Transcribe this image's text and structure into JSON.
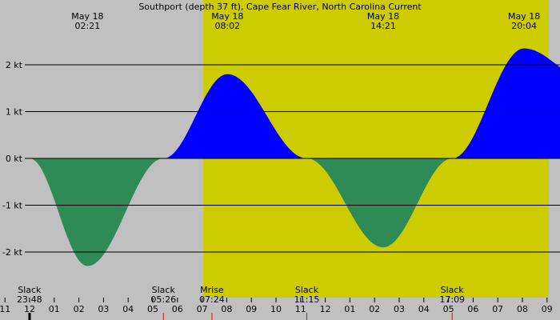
{
  "chart_data": {
    "type": "area",
    "title": "Southport (depth 37 ft), Cape Fear River, North Carolina Current",
    "xlabel": "",
    "ylabel": "",
    "unit": "kt",
    "x_range_hours": [
      -0.2,
      22.6
    ],
    "ylim": [
      -2.7,
      2.7
    ],
    "y_ticks": [
      {
        "value": 2,
        "label": "2 kt"
      },
      {
        "value": 1,
        "label": "1 kt"
      },
      {
        "value": 0,
        "label": "0 kt"
      },
      {
        "value": -1,
        "label": "-1 kt"
      },
      {
        "value": -2,
        "label": "-2 kt"
      }
    ],
    "series": [
      {
        "x": [
          0.0,
          2.35,
          5.43,
          8.03,
          11.25,
          14.35,
          17.15,
          20.07,
          22.6
        ],
        "y": [
          0.0,
          -2.3,
          0.0,
          1.8,
          0.0,
          -1.9,
          0.0,
          2.35,
          1.7
        ]
      }
    ],
    "flood_color": "#0000ff",
    "ebb_color": "#2e8b57",
    "day_color": "#cccc00",
    "night_color": "#c0c0c0",
    "daylight": [
      7.05,
      21.07
    ],
    "top_labels": [
      {
        "t": 2.35,
        "date": "May 18",
        "time": "02:21"
      },
      {
        "t": 8.03,
        "date": "May 18",
        "time": "08:02"
      },
      {
        "t": 14.35,
        "date": "May 18",
        "time": "14:21"
      },
      {
        "t": 20.07,
        "date": "May 18",
        "time": "20:04"
      }
    ],
    "bottom_events": [
      {
        "t": -0.2,
        "label": "Slack",
        "time": "23:48"
      },
      {
        "t": 5.43,
        "label": "Slack",
        "time": "05:26"
      },
      {
        "t": 7.4,
        "label": "Mrise",
        "time": "07:24"
      },
      {
        "t": 11.25,
        "label": "Slack",
        "time": "11:15"
      },
      {
        "t": 17.15,
        "label": "Slack",
        "time": "17:09"
      }
    ],
    "x_ticks": [
      {
        "t": -1,
        "label": "11"
      },
      {
        "t": 0,
        "label": "12"
      },
      {
        "t": 1,
        "label": "01"
      },
      {
        "t": 2,
        "label": "02"
      },
      {
        "t": 3,
        "label": "03"
      },
      {
        "t": 4,
        "label": "04"
      },
      {
        "t": 5,
        "label": "05"
      },
      {
        "t": 6,
        "label": "06"
      },
      {
        "t": 7,
        "label": "07"
      },
      {
        "t": 8,
        "label": "08"
      },
      {
        "t": 9,
        "label": "09"
      },
      {
        "t": 10,
        "label": "10"
      },
      {
        "t": 11,
        "label": "11"
      },
      {
        "t": 12,
        "label": "12"
      },
      {
        "t": 13,
        "label": "01"
      },
      {
        "t": 14,
        "label": "02"
      },
      {
        "t": 15,
        "label": "03"
      },
      {
        "t": 16,
        "label": "04"
      },
      {
        "t": 17,
        "label": "05"
      },
      {
        "t": 18,
        "label": "06"
      },
      {
        "t": 19,
        "label": "07"
      },
      {
        "t": 20,
        "label": "08"
      },
      {
        "t": 21,
        "label": "09"
      }
    ],
    "grid": true
  }
}
